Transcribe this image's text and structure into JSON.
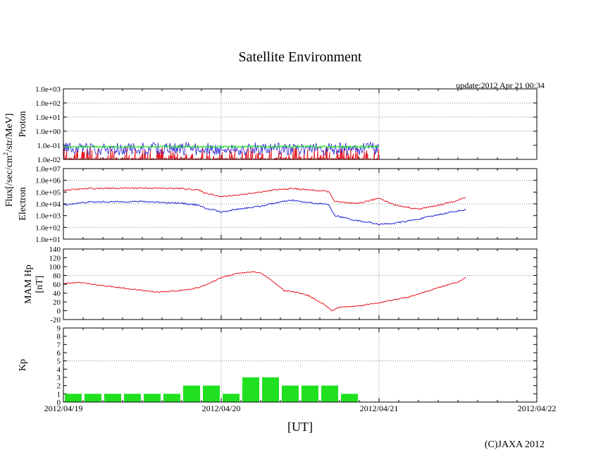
{
  "chart_data": {
    "type": "line",
    "title": "Satellite Environment",
    "update_text": "update:2012 Apr 21 00:34",
    "copyright": "(C)JAXA 2012",
    "xlabel": "[UT]",
    "x_tick_labels": [
      "2012/04/19",
      "2012/04/20",
      "2012/04/21",
      "2012/04/22"
    ],
    "x_range_days": [
      0,
      3
    ],
    "data_end_day": 2.0,
    "colors": {
      "red": "#e8141e",
      "blue": "#1e1ed8",
      "green": "#20e020",
      "grid": "#888888"
    },
    "shared_ylabel": {
      "text": "Flux[/sec/cm",
      "sup": "2",
      "rest": "/str/MeV]"
    },
    "panels": [
      {
        "id": "proton",
        "ylabel": "Proton",
        "scale": "log",
        "ylim_exp": [
          -2,
          3
        ],
        "tick_labels": [
          "1.0e-02",
          "1.0e-01",
          "1.0e+00",
          "1.0e+01",
          "1.0e+02",
          "1.0e+03"
        ],
        "grid_values": [
          0,
          1,
          2
        ],
        "series": [
          {
            "name": "proton-high",
            "color": "red",
            "description": "noise near 1.0e-02 floor with spikes to ~1e-01"
          },
          {
            "name": "proton-mid",
            "color": "blue",
            "description": "noisy 2e-02 to 1.5e-01"
          },
          {
            "name": "proton-low",
            "color": "green",
            "level_exp": -1.1
          }
        ]
      },
      {
        "id": "electron",
        "ylabel": "Electron",
        "scale": "log",
        "ylim_exp": [
          1,
          7
        ],
        "tick_labels": [
          "1.0e+01",
          "1.0e+02",
          "1.0e+03",
          "1.0e+04",
          "1.0e+05",
          "1.0e+06",
          "1.0e+07"
        ],
        "grid_values": [
          2,
          4,
          6
        ],
        "series": [
          {
            "name": "electron-high",
            "color": "red",
            "points": [
              [
                0,
                5.15
              ],
              [
                0.15,
                5.3
              ],
              [
                0.5,
                5.35
              ],
              [
                0.75,
                5.3
              ],
              [
                0.85,
                5.2
              ],
              [
                0.9,
                4.9
              ],
              [
                0.95,
                4.8
              ],
              [
                1.0,
                4.6
              ],
              [
                1.1,
                4.75
              ],
              [
                1.25,
                5.0
              ],
              [
                1.35,
                5.2
              ],
              [
                1.45,
                5.3
              ],
              [
                1.55,
                5.2
              ],
              [
                1.68,
                5.05
              ],
              [
                1.72,
                4.2
              ],
              [
                1.85,
                4.0
              ],
              [
                1.95,
                4.3
              ],
              [
                2.0,
                4.5
              ],
              [
                2.1,
                3.9
              ],
              [
                2.25,
                3.55
              ],
              [
                2.4,
                3.95
              ],
              [
                2.5,
                4.3
              ],
              [
                2.55,
                4.55
              ]
            ]
          },
          {
            "name": "electron-low",
            "color": "blue",
            "points": [
              [
                0,
                3.9
              ],
              [
                0.15,
                4.15
              ],
              [
                0.5,
                4.2
              ],
              [
                0.75,
                4.05
              ],
              [
                0.85,
                3.9
              ],
              [
                0.9,
                3.6
              ],
              [
                0.95,
                3.5
              ],
              [
                1.0,
                3.3
              ],
              [
                1.1,
                3.55
              ],
              [
                1.25,
                3.8
              ],
              [
                1.35,
                4.1
              ],
              [
                1.45,
                4.3
              ],
              [
                1.55,
                4.1
              ],
              [
                1.68,
                3.95
              ],
              [
                1.72,
                3.0
              ],
              [
                1.85,
                2.6
              ],
              [
                1.95,
                2.4
              ],
              [
                2.0,
                2.25
              ],
              [
                2.1,
                2.35
              ],
              [
                2.25,
                2.7
              ],
              [
                2.4,
                3.15
              ],
              [
                2.5,
                3.4
              ],
              [
                2.55,
                3.5
              ]
            ]
          }
        ]
      },
      {
        "id": "hp",
        "ylabel": "MAM Hp",
        "ylabel2": "[nT]",
        "scale": "linear",
        "ylim": [
          -20,
          140
        ],
        "tick_labels": [
          "-20",
          "0",
          "20",
          "40",
          "60",
          "80",
          "100",
          "120",
          "140"
        ],
        "grid_values": [
          80
        ],
        "series": [
          {
            "name": "hp",
            "color": "red",
            "points": [
              [
                0,
                62
              ],
              [
                0.1,
                64
              ],
              [
                0.25,
                57
              ],
              [
                0.45,
                48
              ],
              [
                0.55,
                44
              ],
              [
                0.6,
                42
              ],
              [
                0.75,
                46
              ],
              [
                0.85,
                52
              ],
              [
                0.9,
                58
              ],
              [
                1.0,
                75
              ],
              [
                1.1,
                85
              ],
              [
                1.2,
                88
              ],
              [
                1.25,
                86
              ],
              [
                1.32,
                68
              ],
              [
                1.4,
                45
              ],
              [
                1.45,
                44
              ],
              [
                1.55,
                35
              ],
              [
                1.65,
                15
              ],
              [
                1.7,
                0
              ],
              [
                1.75,
                8
              ],
              [
                1.85,
                10
              ],
              [
                2.0,
                18
              ],
              [
                2.2,
                32
              ],
              [
                2.4,
                55
              ],
              [
                2.5,
                65
              ],
              [
                2.55,
                75
              ]
            ]
          }
        ]
      },
      {
        "id": "kp",
        "ylabel": "Kp",
        "type": "bar",
        "ylim": [
          0,
          9
        ],
        "tick_labels": [
          "0",
          "1",
          "2",
          "3",
          "4",
          "5",
          "6",
          "7",
          "8",
          "9"
        ],
        "grid_values": [
          5
        ],
        "bar_width_days": 0.125,
        "values": [
          1,
          1,
          1,
          1,
          1,
          1,
          2,
          2,
          1,
          3,
          3,
          2,
          2,
          2,
          1
        ]
      }
    ]
  }
}
